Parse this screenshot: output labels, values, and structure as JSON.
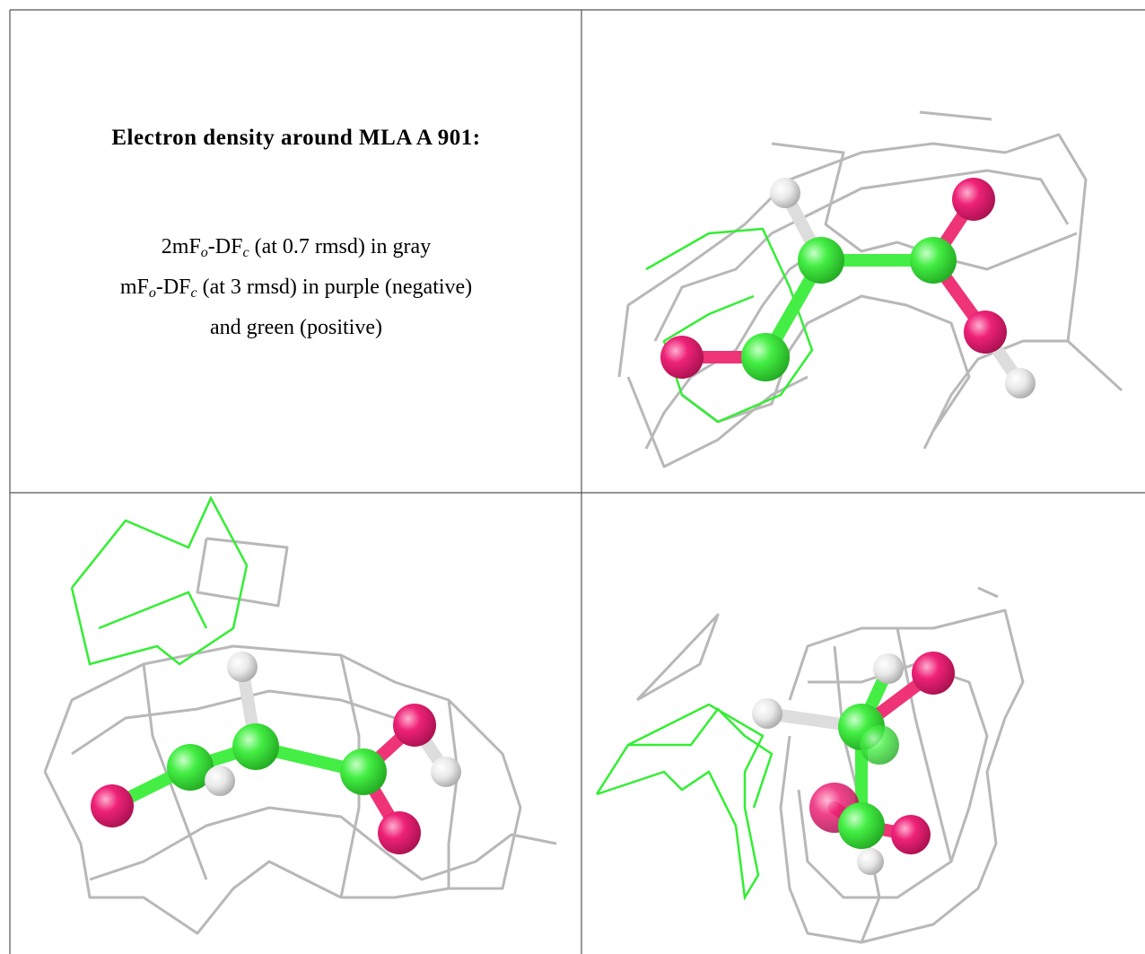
{
  "cell": {
    "title": "Electron density around MLA A 901:",
    "caption": [
      [
        "2mF",
        "o",
        "-DF",
        "c",
        " (at 0.7 rmsd) in gray"
      ],
      [
        "mF",
        "o",
        "-DF",
        "c",
        " (at 3 rmsd) in purple (negative)"
      ],
      [
        "and green (positive)"
      ]
    ]
  }
}
